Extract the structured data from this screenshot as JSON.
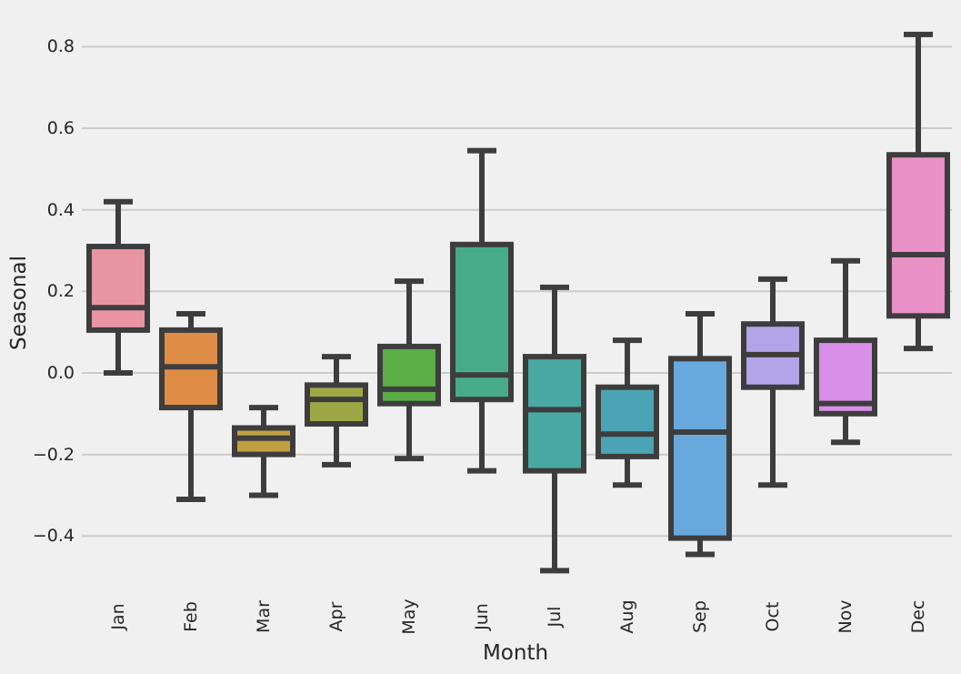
{
  "style": {
    "background": "#f0f0f0",
    "grid_color": "#cbcbcb",
    "edge_color": "#3d3d3d",
    "text_color": "#262626"
  },
  "chart_data": {
    "type": "box",
    "title": "",
    "xlabel": "Month",
    "ylabel": "Seasonal",
    "categories": [
      "Jan",
      "Feb",
      "Mar",
      "Apr",
      "May",
      "Jun",
      "Jul",
      "Aug",
      "Sep",
      "Oct",
      "Nov",
      "Dec"
    ],
    "yticks": [
      0.8,
      0.6,
      0.4,
      0.2,
      0.0,
      -0.2,
      -0.4
    ],
    "ytick_labels": [
      "0.8",
      "0.6",
      "0.4",
      "0.2",
      "0.0",
      "−0.2",
      "−0.4"
    ],
    "ylim": [
      -0.54,
      0.87
    ],
    "grid": "horizontal",
    "legend": "none",
    "series": [
      {
        "label": "Jan",
        "whislo": 0.0,
        "q1": 0.105,
        "med": 0.16,
        "q3": 0.31,
        "whishi": 0.42,
        "color": "#e994a2"
      },
      {
        "label": "Feb",
        "whislo": -0.31,
        "q1": -0.085,
        "med": 0.015,
        "q3": 0.105,
        "whishi": 0.145,
        "color": "#df8d46"
      },
      {
        "label": "Mar",
        "whislo": -0.3,
        "q1": -0.2,
        "med": -0.16,
        "q3": -0.135,
        "whishi": -0.085,
        "color": "#c19e41"
      },
      {
        "label": "Apr",
        "whislo": -0.225,
        "q1": -0.125,
        "med": -0.065,
        "q3": -0.03,
        "whishi": 0.04,
        "color": "#9da845"
      },
      {
        "label": "May",
        "whislo": -0.21,
        "q1": -0.075,
        "med": -0.04,
        "q3": 0.065,
        "whishi": 0.225,
        "color": "#5bad45"
      },
      {
        "label": "Jun",
        "whislo": -0.24,
        "q1": -0.065,
        "med": -0.005,
        "q3": 0.315,
        "whishi": 0.545,
        "color": "#47ab8a"
      },
      {
        "label": "Jul",
        "whislo": -0.485,
        "q1": -0.24,
        "med": -0.09,
        "q3": 0.04,
        "whishi": 0.21,
        "color": "#4aa9a2"
      },
      {
        "label": "Aug",
        "whislo": -0.275,
        "q1": -0.205,
        "med": -0.15,
        "q3": -0.035,
        "whishi": 0.08,
        "color": "#4aa4b6"
      },
      {
        "label": "Sep",
        "whislo": -0.445,
        "q1": -0.405,
        "med": -0.145,
        "q3": 0.035,
        "whishi": 0.145,
        "color": "#67a9dc"
      },
      {
        "label": "Oct",
        "whislo": -0.275,
        "q1": -0.035,
        "med": 0.045,
        "q3": 0.12,
        "whishi": 0.23,
        "color": "#b3a4e8"
      },
      {
        "label": "Nov",
        "whislo": -0.17,
        "q1": -0.1,
        "med": -0.075,
        "q3": 0.08,
        "whishi": 0.275,
        "color": "#d98ee7"
      },
      {
        "label": "Dec",
        "whislo": 0.06,
        "q1": 0.14,
        "med": 0.29,
        "q3": 0.535,
        "whishi": 0.83,
        "color": "#e990c6"
      }
    ]
  }
}
